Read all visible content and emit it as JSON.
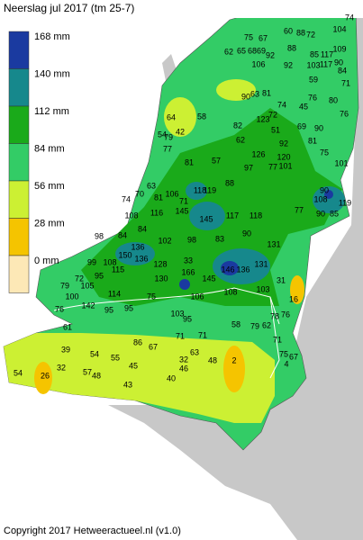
{
  "title": "Neerslag jul 2017 (tm 25-7)",
  "legend": [
    {
      "label": "168 mm",
      "color": "#1a3aa0"
    },
    {
      "label": "140 mm",
      "color": "#16888c"
    },
    {
      "label": "112 mm",
      "color": "#1aaa1a"
    },
    {
      "label": "84 mm",
      "color": "#33cc66"
    },
    {
      "label": "56 mm",
      "color": "#ccf033"
    },
    {
      "label": "28 mm",
      "color": "#f5c400"
    },
    {
      "label": "0 mm",
      "color": "#fde8b6"
    }
  ],
  "stations": [
    74,
    104,
    75,
    67,
    60,
    88,
    72,
    62,
    65,
    68,
    69,
    92,
    88,
    85,
    117,
    109,
    106,
    92,
    103,
    117,
    90,
    59,
    84,
    71,
    90,
    63,
    81,
    74,
    45,
    76,
    80,
    76,
    64,
    58,
    72,
    51,
    123,
    69,
    90,
    42,
    54,
    79,
    82,
    62,
    77,
    92,
    81,
    75,
    101,
    57,
    81,
    126,
    120,
    77,
    101,
    97,
    88,
    63,
    118,
    119,
    81,
    106,
    71,
    70,
    74,
    108,
    119,
    90,
    90,
    85,
    77,
    108,
    116,
    145,
    145,
    117,
    118,
    90,
    83,
    98,
    102,
    84,
    84,
    98,
    136,
    136,
    150,
    108,
    99,
    128,
    33,
    166,
    145,
    146,
    136,
    131,
    131,
    130,
    115,
    95,
    72,
    79,
    105,
    100,
    114,
    75,
    106,
    108,
    103,
    16,
    142,
    95,
    76,
    95,
    103,
    95,
    61,
    71,
    58,
    79,
    62,
    78,
    76,
    71,
    86,
    67,
    54,
    55,
    45,
    39,
    63,
    32,
    46,
    48,
    2,
    54,
    26,
    32,
    57,
    48,
    43,
    40,
    71,
    75,
    67,
    4,
    31
  ],
  "copyright": "Copyright 2017 Hetweeractueel.nl (v1.0)"
}
